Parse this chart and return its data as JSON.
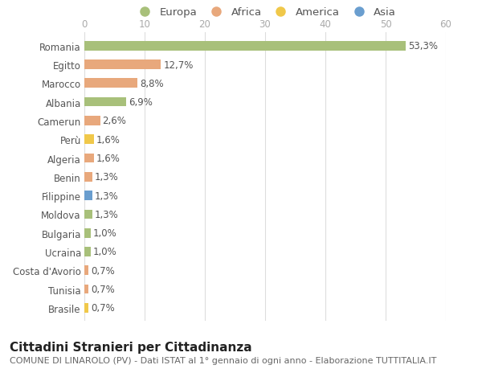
{
  "countries": [
    "Romania",
    "Egitto",
    "Marocco",
    "Albania",
    "Camerun",
    "Perù",
    "Algeria",
    "Benin",
    "Filippine",
    "Moldova",
    "Bulgaria",
    "Ucraina",
    "Costa d'Avorio",
    "Tunisia",
    "Brasile"
  ],
  "values": [
    53.3,
    12.7,
    8.8,
    6.9,
    2.6,
    1.6,
    1.6,
    1.3,
    1.3,
    1.3,
    1.0,
    1.0,
    0.7,
    0.7,
    0.7
  ],
  "labels": [
    "53,3%",
    "12,7%",
    "8,8%",
    "6,9%",
    "2,6%",
    "1,6%",
    "1,6%",
    "1,3%",
    "1,3%",
    "1,3%",
    "1,0%",
    "1,0%",
    "0,7%",
    "0,7%",
    "0,7%"
  ],
  "continents": [
    "Europa",
    "Africa",
    "Africa",
    "Europa",
    "Africa",
    "America",
    "Africa",
    "Africa",
    "Asia",
    "Europa",
    "Europa",
    "Europa",
    "Africa",
    "Africa",
    "America"
  ],
  "colors": {
    "Europa": "#a8c07a",
    "Africa": "#e8a87c",
    "America": "#f0c84a",
    "Asia": "#6a9ecf"
  },
  "legend_order": [
    "Europa",
    "Africa",
    "America",
    "Asia"
  ],
  "legend_colors": [
    "#a8c07a",
    "#e8a87c",
    "#f0c84a",
    "#6a9ecf"
  ],
  "xlim": [
    0,
    60
  ],
  "xticks": [
    0,
    10,
    20,
    30,
    40,
    50,
    60
  ],
  "background_color": "#ffffff",
  "grid_color": "#dddddd",
  "title": "Cittadini Stranieri per Cittadinanza",
  "subtitle": "COMUNE DI LINAROLO (PV) - Dati ISTAT al 1° gennaio di ogni anno - Elaborazione TUTTITALIA.IT",
  "bar_height": 0.5,
  "title_fontsize": 11,
  "subtitle_fontsize": 8,
  "label_fontsize": 8.5,
  "tick_fontsize": 8.5,
  "legend_fontsize": 9.5
}
